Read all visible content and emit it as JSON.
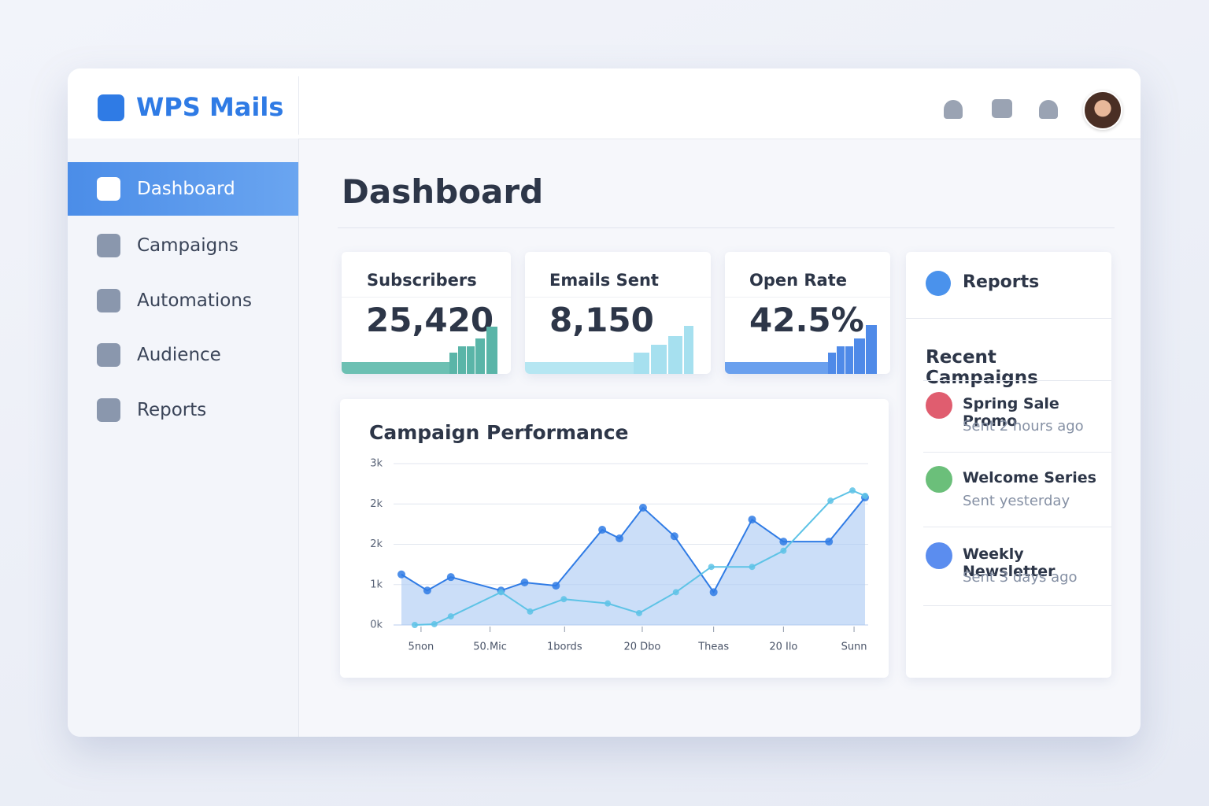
{
  "header": {
    "brand": "WPS Mails"
  },
  "sidebar": {
    "items": [
      "Dashboard",
      "Campaigns",
      "Automations",
      "Audience",
      "Reports"
    ],
    "active": 0
  },
  "page_title": "Dashboard",
  "stats": [
    {
      "label": "Subscribers",
      "value": "25,420"
    },
    {
      "label": "Emails Sent",
      "value": "8,150"
    },
    {
      "label": "Open Rate",
      "value": "42.5%"
    }
  ],
  "reports_panel": {
    "title": "Reports",
    "section": "Recent Campaigns",
    "items": [
      {
        "name": "Spring Sale Promo",
        "time": "Sent 2 hours ago"
      },
      {
        "name": "Welcome Series",
        "time": "Sent yesterday"
      },
      {
        "name": "Weekly Newsletter",
        "time": "Sent 3 days ago"
      }
    ]
  },
  "chart_data": {
    "type": "line",
    "title": "Campaign Performance",
    "xlim": [
      0,
      600
    ],
    "xticks": [
      {
        "value": 30,
        "label": "5non"
      },
      {
        "value": 118,
        "label": "50.Mic"
      },
      {
        "value": 213,
        "label": "1bords"
      },
      {
        "value": 312,
        "label": "20 Dbo"
      },
      {
        "value": 403,
        "label": "Theas"
      },
      {
        "value": 492,
        "label": "20 Ilo"
      },
      {
        "value": 582,
        "label": "Sunn"
      }
    ],
    "ylim": [
      0,
      3000
    ],
    "yticks": [
      {
        "value": 0,
        "label": "0k"
      },
      {
        "value": 750,
        "label": "1k"
      },
      {
        "value": 1500,
        "label": "2k"
      },
      {
        "value": 2250,
        "label": "2k"
      },
      {
        "value": 3000,
        "label": "3k"
      }
    ],
    "grid": true,
    "series": [
      {
        "color": "#2f7be5",
        "area": true,
        "x": [
          5,
          38,
          68,
          132,
          162,
          202,
          261,
          283,
          313,
          353,
          403,
          452,
          492,
          550,
          596
        ],
        "values": [
          940,
          640,
          890,
          640,
          790,
          730,
          1770,
          1610,
          2180,
          1650,
          610,
          1960,
          1550,
          1550,
          2370
        ]
      },
      {
        "color": "#5ec3e6",
        "area": false,
        "x": [
          22,
          47,
          68,
          132,
          169,
          212,
          268,
          308,
          355,
          400,
          452,
          492,
          552,
          580,
          596
        ],
        "values": [
          0,
          15,
          160,
          610,
          250,
          480,
          400,
          220,
          610,
          1080,
          1080,
          1380,
          2310,
          2500,
          2400
        ]
      }
    ]
  }
}
